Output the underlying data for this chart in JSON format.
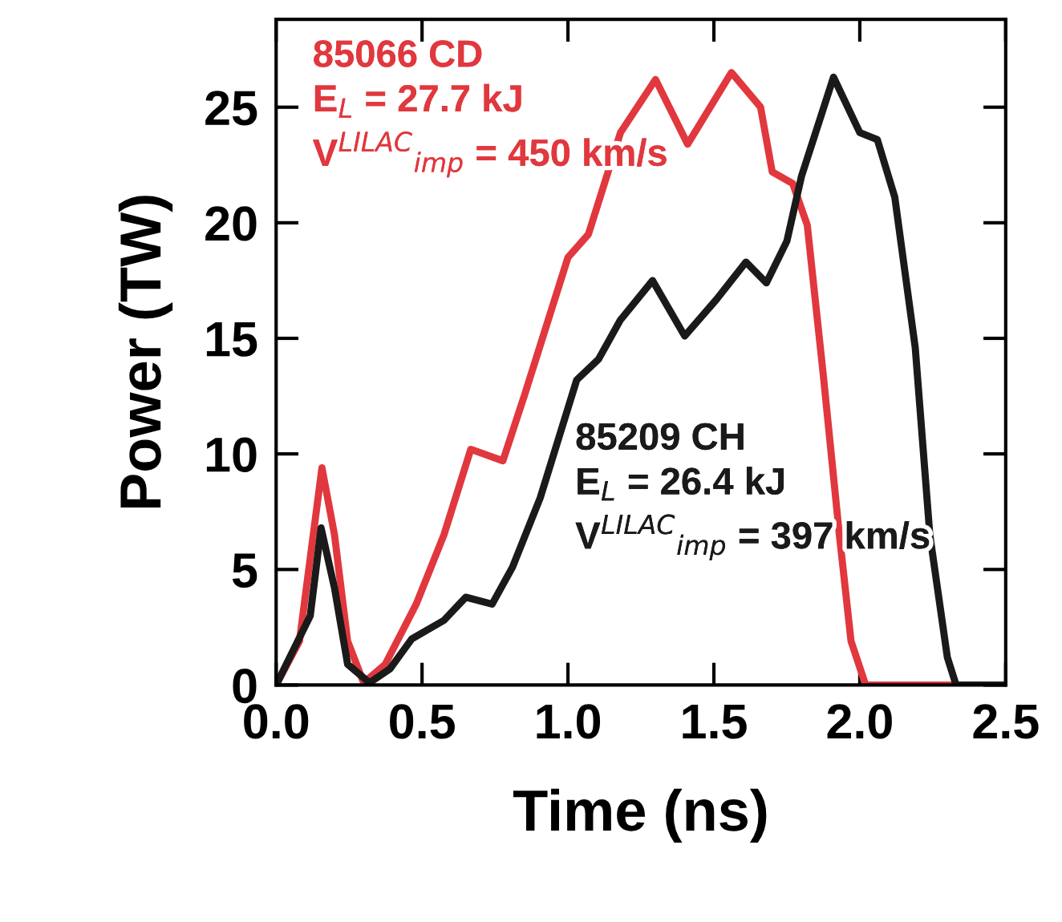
{
  "chart_data": {
    "type": "line",
    "xlabel": "Time (ns)",
    "ylabel": "Power (TW)",
    "xlim": [
      0,
      2.5
    ],
    "xticks": [
      {
        "value": 0,
        "label": "0.0"
      },
      0.5,
      {
        "value": 1,
        "label": "1.0"
      },
      1.5,
      {
        "value": 2,
        "label": "2.0"
      },
      2.5
    ],
    "ylim": [
      0,
      28.8
    ],
    "yticks": [
      0,
      5,
      10,
      15,
      20,
      25
    ],
    "grid": false,
    "marker": "none",
    "line_style": "solid",
    "series": [
      {
        "name": "85066 CD\nE$_{L}$ = 27.7 kJ\nV$^{LILAC}$$_{imp}$ = 450 km/s",
        "color": "#e0383e",
        "x": [
          0,
          0.08,
          0.157,
          0.2,
          0.245,
          0.3,
          0.374,
          0.48,
          0.575,
          0.667,
          0.777,
          0.85,
          0.92,
          1.0,
          1.07,
          1.18,
          1.3,
          1.41,
          1.56,
          1.66,
          1.7,
          1.77,
          1.82,
          1.875,
          1.93,
          1.97,
          2.02,
          2.32
        ],
        "values": [
          0,
          1.9,
          9.4,
          6.5,
          1.9,
          0.1,
          0.9,
          3.5,
          6.5,
          10.2,
          9.7,
          12.5,
          15.3,
          18.5,
          19.5,
          23.9,
          26.2,
          23.4,
          26.5,
          25.0,
          22.2,
          21.7,
          19.9,
          13.4,
          6.5,
          1.9,
          0,
          0
        ]
      },
      {
        "name": "85209 CH\nE$_{L}$ = 26.4 kJ\nV$^{LILAC}$$_{imp}$ = 397 km/s",
        "color": "#1a1a1a",
        "x": [
          0,
          0.117,
          0.154,
          0.2,
          0.245,
          0.32,
          0.39,
          0.465,
          0.575,
          0.65,
          0.74,
          0.81,
          0.905,
          1.03,
          1.105,
          1.18,
          1.29,
          1.4,
          1.51,
          1.61,
          1.68,
          1.75,
          1.8,
          1.91,
          2.0,
          2.06,
          2.12,
          2.19,
          2.24,
          2.3,
          2.33,
          2.5
        ],
        "values": [
          0,
          3.0,
          6.8,
          4.2,
          0.9,
          0.1,
          0.7,
          2.0,
          2.8,
          3.8,
          3.5,
          5.1,
          8.1,
          13.2,
          14.1,
          15.8,
          17.5,
          15.1,
          16.7,
          18.3,
          17.4,
          19.2,
          22.0,
          26.3,
          23.9,
          23.6,
          21.1,
          14.6,
          6.5,
          1.2,
          0,
          0
        ]
      }
    ]
  }
}
